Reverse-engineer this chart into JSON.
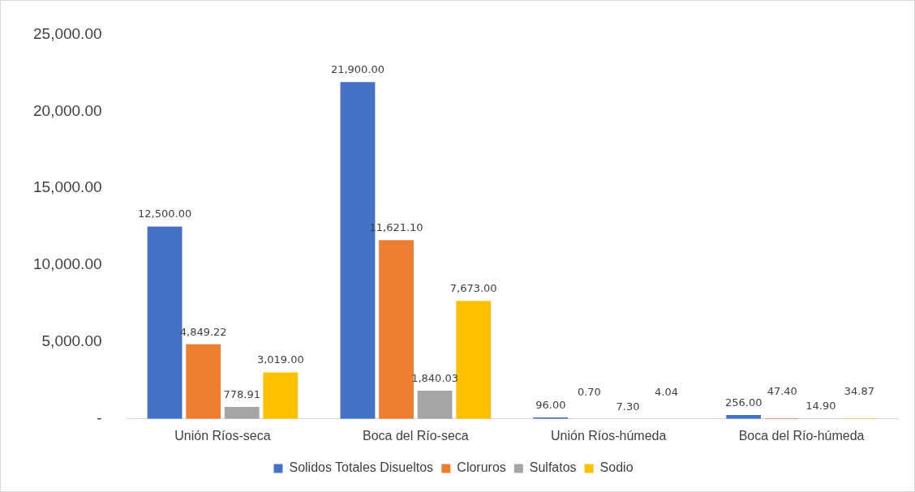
{
  "chart_data": {
    "type": "bar",
    "categories": [
      "Unión Ríos-seca",
      "Boca del Río-seca",
      "Unión Ríos-húmeda",
      "Boca del Río-húmeda"
    ],
    "series": [
      {
        "name": "Solidos Totales Disueltos",
        "color": "#4472c4",
        "values": [
          12500,
          21900,
          96,
          256
        ],
        "value_labels": [
          "12,500.00",
          "21,900.00",
          "96.00",
          "256.00"
        ]
      },
      {
        "name": "Cloruros",
        "color": "#ed7d31",
        "values": [
          4849.22,
          11621.1,
          0.7,
          47.4
        ],
        "value_labels": [
          "4,849.22",
          "11,621.10",
          "0.70",
          "47.40"
        ]
      },
      {
        "name": "Sulfatos",
        "color": "#a5a5a5",
        "values": [
          778.91,
          1840.03,
          7.3,
          14.9
        ],
        "value_labels": [
          "778.91",
          "1,840.03",
          "7.30",
          "14.90"
        ]
      },
      {
        "name": "Sodio",
        "color": "#ffc000",
        "values": [
          3019,
          7673,
          4.04,
          34.87
        ],
        "value_labels": [
          "3,019.00",
          "7,673.00",
          "4.04",
          "34.87"
        ]
      }
    ],
    "ylim": [
      0,
      25000
    ],
    "yticks": [
      {
        "value": 0,
        "label": "-"
      },
      {
        "value": 5000,
        "label": "5,000.00"
      },
      {
        "value": 10000,
        "label": "10,000.00"
      },
      {
        "value": 15000,
        "label": "15,000.00"
      },
      {
        "value": 20000,
        "label": "20,000.00"
      },
      {
        "value": 25000,
        "label": "25,000.00"
      }
    ],
    "grid": false,
    "legend": "bottom"
  }
}
